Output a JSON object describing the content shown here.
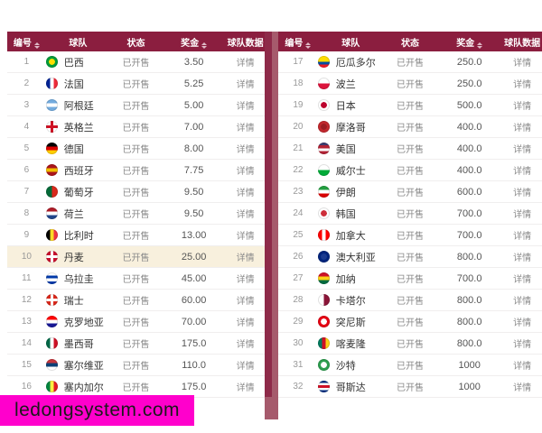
{
  "colors": {
    "header_bg": "#8b1e3f",
    "header_text": "#ffffff",
    "divider_track": "#a65a6c",
    "divider_thumb": "#8e2a49",
    "row_highlight": "#f8f0dd",
    "watermark_bg": "#ff00cc",
    "watermark_text": "#1a1a1a"
  },
  "watermark": {
    "text": "ledongsystem.com"
  },
  "table": {
    "headers": {
      "id": "编号",
      "team": "球队",
      "status": "状态",
      "prize": "奖金",
      "data": "球队数据"
    },
    "sortable_columns": [
      "编号",
      "奖金"
    ],
    "detail_label": "详情",
    "left_rows": [
      {
        "id": "1",
        "team": "巴西",
        "status": "已开售",
        "prize": "3.50",
        "detail": "详情",
        "flag": {
          "t": "disc",
          "c": [
            "#009b3a",
            "#ffdf00"
          ]
        }
      },
      {
        "id": "2",
        "team": "法国",
        "status": "已开售",
        "prize": "5.25",
        "detail": "详情",
        "flag": {
          "t": "v",
          "c": [
            "#002395",
            "#ffffff",
            "#ed2939"
          ]
        }
      },
      {
        "id": "3",
        "team": "阿根廷",
        "status": "已开售",
        "prize": "5.00",
        "detail": "详情",
        "flag": {
          "t": "h",
          "c": [
            "#74acdf",
            "#ffffff",
            "#74acdf"
          ]
        }
      },
      {
        "id": "4",
        "team": "英格兰",
        "status": "已开售",
        "prize": "7.00",
        "detail": "详情",
        "flag": {
          "t": "cross",
          "c": [
            "#ffffff",
            "#ce1124"
          ]
        }
      },
      {
        "id": "5",
        "team": "德国",
        "status": "已开售",
        "prize": "8.00",
        "detail": "详情",
        "flag": {
          "t": "h",
          "c": [
            "#000000",
            "#dd0000",
            "#ffce00"
          ]
        }
      },
      {
        "id": "6",
        "team": "西班牙",
        "status": "已开售",
        "prize": "7.75",
        "detail": "详情",
        "flag": {
          "t": "h",
          "c": [
            "#aa151b",
            "#f1bf00",
            "#aa151b"
          ]
        }
      },
      {
        "id": "7",
        "team": "葡萄牙",
        "status": "已开售",
        "prize": "9.50",
        "detail": "详情",
        "flag": {
          "t": "v",
          "c": [
            "#046a38",
            "#da291c"
          ]
        }
      },
      {
        "id": "8",
        "team": "荷兰",
        "status": "已开售",
        "prize": "9.50",
        "detail": "详情",
        "flag": {
          "t": "h",
          "c": [
            "#ae1c28",
            "#ffffff",
            "#21468b"
          ]
        }
      },
      {
        "id": "9",
        "team": "比利时",
        "status": "已开售",
        "prize": "13.00",
        "detail": "详情",
        "flag": {
          "t": "v",
          "c": [
            "#000000",
            "#fdda24",
            "#ef3340"
          ]
        }
      },
      {
        "id": "10",
        "team": "丹麦",
        "status": "已开售",
        "prize": "25.00",
        "detail": "详情",
        "highlight": true,
        "flag": {
          "t": "cross",
          "c": [
            "#c8102e",
            "#ffffff"
          ]
        }
      },
      {
        "id": "11",
        "team": "乌拉圭",
        "status": "已开售",
        "prize": "45.00",
        "detail": "详情",
        "flag": {
          "t": "h",
          "c": [
            "#ffffff",
            "#0038a8",
            "#ffffff",
            "#0038a8"
          ]
        }
      },
      {
        "id": "12",
        "team": "瑞士",
        "status": "已开售",
        "prize": "60.00",
        "detail": "详情",
        "flag": {
          "t": "cross",
          "c": [
            "#da291c",
            "#ffffff"
          ]
        }
      },
      {
        "id": "13",
        "team": "克罗地亚",
        "status": "已开售",
        "prize": "70.00",
        "detail": "详情",
        "flag": {
          "t": "h",
          "c": [
            "#ff0000",
            "#ffffff",
            "#171796"
          ]
        }
      },
      {
        "id": "14",
        "team": "墨西哥",
        "status": "已开售",
        "prize": "175.0",
        "detail": "详情",
        "flag": {
          "t": "v",
          "c": [
            "#006847",
            "#ffffff",
            "#ce1126"
          ]
        }
      },
      {
        "id": "15",
        "team": "塞尔维亚",
        "status": "已开售",
        "prize": "110.0",
        "detail": "详情",
        "flag": {
          "t": "h",
          "c": [
            "#c6363c",
            "#0c4076",
            "#ffffff"
          ]
        }
      },
      {
        "id": "16",
        "team": "塞内加尔",
        "status": "已开售",
        "prize": "175.0",
        "detail": "详情",
        "flag": {
          "t": "v",
          "c": [
            "#00853f",
            "#fdef42",
            "#e31b23"
          ]
        }
      }
    ],
    "right_rows": [
      {
        "id": "17",
        "team": "厄瓜多尔",
        "status": "已开售",
        "prize": "250.0",
        "detail": "详情",
        "flag": {
          "t": "h",
          "c": [
            "#ffdd00",
            "#ffdd00",
            "#034ea2",
            "#ed1c24"
          ]
        }
      },
      {
        "id": "18",
        "team": "波兰",
        "status": "已开售",
        "prize": "250.0",
        "detail": "详情",
        "flag": {
          "t": "h",
          "c": [
            "#ffffff",
            "#dc143c"
          ]
        }
      },
      {
        "id": "19",
        "team": "日本",
        "status": "已开售",
        "prize": "500.0",
        "detail": "详情",
        "flag": {
          "t": "disc",
          "c": [
            "#ffffff",
            "#bc002d"
          ]
        }
      },
      {
        "id": "20",
        "team": "摩洛哥",
        "status": "已开售",
        "prize": "400.0",
        "detail": "详情",
        "flag": {
          "t": "disc",
          "c": [
            "#c1272d",
            "#9b1c22"
          ]
        }
      },
      {
        "id": "21",
        "team": "美国",
        "status": "已开售",
        "prize": "400.0",
        "detail": "详情",
        "flag": {
          "t": "h",
          "c": [
            "#3c3b6e",
            "#b22234",
            "#ffffff",
            "#b22234"
          ]
        }
      },
      {
        "id": "22",
        "team": "威尔士",
        "status": "已开售",
        "prize": "400.0",
        "detail": "详情",
        "flag": {
          "t": "h",
          "c": [
            "#ffffff",
            "#00ab39"
          ]
        }
      },
      {
        "id": "23",
        "team": "伊朗",
        "status": "已开售",
        "prize": "600.0",
        "detail": "详情",
        "flag": {
          "t": "h",
          "c": [
            "#239f40",
            "#ffffff",
            "#da0000"
          ]
        }
      },
      {
        "id": "24",
        "team": "韩国",
        "status": "已开售",
        "prize": "700.0",
        "detail": "详情",
        "flag": {
          "t": "disc",
          "c": [
            "#ffffff",
            "#cd2e3a"
          ]
        }
      },
      {
        "id": "25",
        "team": "加拿大",
        "status": "已开售",
        "prize": "700.0",
        "detail": "详情",
        "flag": {
          "t": "v",
          "c": [
            "#ff0000",
            "#ffffff",
            "#ff0000"
          ]
        }
      },
      {
        "id": "26",
        "team": "澳大利亚",
        "status": "已开售",
        "prize": "800.0",
        "detail": "详情",
        "flag": {
          "t": "disc",
          "c": [
            "#00247d",
            "#1a3a8f"
          ]
        }
      },
      {
        "id": "27",
        "team": "加纳",
        "status": "已开售",
        "prize": "700.0",
        "detail": "详情",
        "flag": {
          "t": "h",
          "c": [
            "#ce1126",
            "#fcd116",
            "#006b3f"
          ]
        }
      },
      {
        "id": "28",
        "team": "卡塔尔",
        "status": "已开售",
        "prize": "800.0",
        "detail": "详情",
        "flag": {
          "t": "v",
          "c": [
            "#ffffff",
            "#8a1538"
          ]
        }
      },
      {
        "id": "29",
        "team": "突尼斯",
        "status": "已开售",
        "prize": "800.0",
        "detail": "详情",
        "flag": {
          "t": "disc",
          "c": [
            "#e70013",
            "#ffffff"
          ]
        }
      },
      {
        "id": "30",
        "team": "喀麦隆",
        "status": "已开售",
        "prize": "800.0",
        "detail": "详情",
        "flag": {
          "t": "v",
          "c": [
            "#007a5e",
            "#ce1126",
            "#fcd116"
          ]
        }
      },
      {
        "id": "31",
        "team": "沙特",
        "status": "已开售",
        "prize": "1000",
        "detail": "详情",
        "flag": {
          "t": "disc",
          "c": [
            "#2d9e4f",
            "#ffffff"
          ]
        }
      },
      {
        "id": "32",
        "team": "哥斯达",
        "status": "已开售",
        "prize": "1000",
        "detail": "详情",
        "flag": {
          "t": "h",
          "c": [
            "#002b7f",
            "#ffffff",
            "#ce1126",
            "#ffffff",
            "#002b7f"
          ]
        }
      }
    ]
  }
}
